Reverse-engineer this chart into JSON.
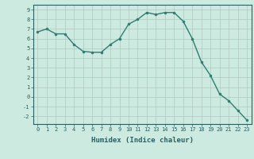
{
  "x": [
    0,
    1,
    2,
    3,
    4,
    5,
    6,
    7,
    8,
    9,
    10,
    11,
    12,
    13,
    14,
    15,
    16,
    17,
    18,
    19,
    20,
    21,
    22,
    23
  ],
  "y": [
    6.7,
    7.0,
    6.5,
    6.5,
    5.4,
    4.7,
    4.6,
    4.6,
    5.4,
    6.0,
    7.5,
    8.0,
    8.7,
    8.5,
    8.7,
    8.7,
    7.8,
    6.0,
    3.6,
    2.2,
    0.3,
    -0.4,
    -1.4,
    -2.4
  ],
  "xlabel": "Humidex (Indice chaleur)",
  "ylim": [
    -2.8,
    9.5
  ],
  "xlim": [
    -0.5,
    23.5
  ],
  "yticks": [
    -2,
    -1,
    0,
    1,
    2,
    3,
    4,
    5,
    6,
    7,
    8,
    9
  ],
  "xticks": [
    0,
    1,
    2,
    3,
    4,
    5,
    6,
    7,
    8,
    9,
    10,
    11,
    12,
    13,
    14,
    15,
    16,
    17,
    18,
    19,
    20,
    21,
    22,
    23
  ],
  "line_color": "#2e7d70",
  "marker_color": "#2e7d70",
  "bg_color": "#cceae0",
  "grid_color": "#b0c8c0",
  "text_color": "#2d5f5f",
  "font_family": "monospace",
  "tick_fontsize": 5.0,
  "xlabel_fontsize": 6.5
}
